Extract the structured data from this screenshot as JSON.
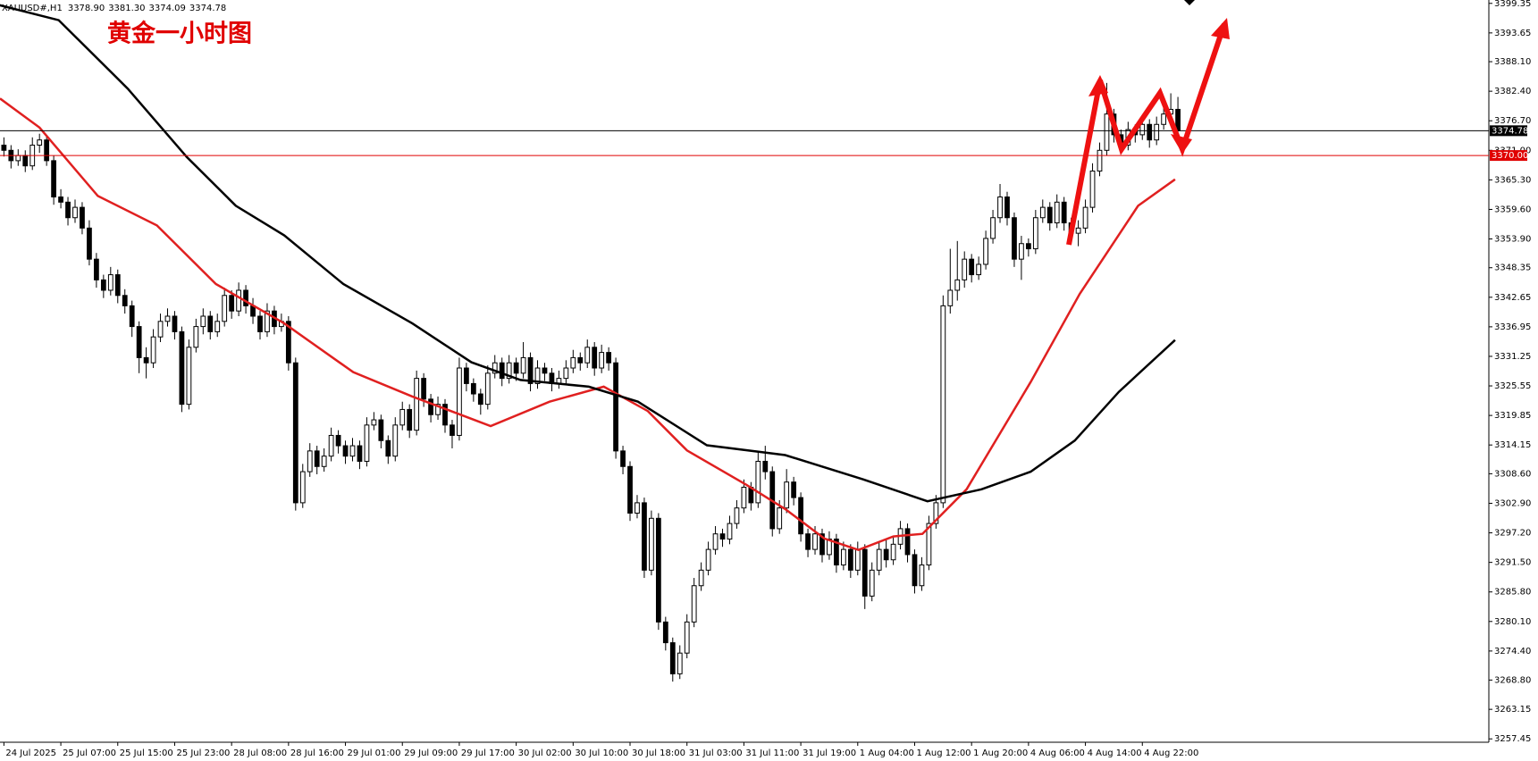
{
  "chart_data": {
    "type": "candlestick",
    "header": {
      "symbol": "XAUUSD#,H1",
      "ohlc_labels": [
        "3378.90",
        "3381.30",
        "3374.09",
        "3374.78"
      ]
    },
    "title": "黄金一小时图",
    "up_color": "#ffffff",
    "down_color": "#000000",
    "candles": [
      [
        3372,
        3373.5,
        3369.8,
        3371
      ],
      [
        3371,
        3372,
        3367.5,
        3369
      ],
      [
        3369,
        3371.2,
        3368,
        3370
      ],
      [
        3370,
        3371,
        3366.8,
        3368
      ],
      [
        3368,
        3373.5,
        3367.2,
        3372
      ],
      [
        3372,
        3374.2,
        3370.5,
        3373
      ],
      [
        3373,
        3373.8,
        3368,
        3369
      ],
      [
        3369,
        3370,
        3360.5,
        3362
      ],
      [
        3362,
        3363.5,
        3359.8,
        3361
      ],
      [
        3361,
        3362,
        3356.5,
        3358
      ],
      [
        3358,
        3361.5,
        3357,
        3360
      ],
      [
        3360,
        3361,
        3354.8,
        3356
      ],
      [
        3356,
        3357.5,
        3348.8,
        3350
      ],
      [
        3350,
        3351.2,
        3344.5,
        3346
      ],
      [
        3346,
        3347,
        3342.5,
        3344
      ],
      [
        3344,
        3348.5,
        3343,
        3347
      ],
      [
        3347,
        3348,
        3341.5,
        3343
      ],
      [
        3343,
        3344.2,
        3339.5,
        3341
      ],
      [
        3341,
        3342,
        3335,
        3337
      ],
      [
        3337,
        3338,
        3328,
        3331
      ],
      [
        3331,
        3333,
        3327,
        3330
      ],
      [
        3330,
        3336.5,
        3329,
        3335
      ],
      [
        3335,
        3339.5,
        3334,
        3338
      ],
      [
        3338,
        3340.5,
        3337,
        3339
      ],
      [
        3339,
        3340,
        3334.5,
        3336
      ],
      [
        3336,
        3337,
        3320.5,
        3322
      ],
      [
        3322,
        3334.5,
        3321,
        3333
      ],
      [
        3333,
        3338.5,
        3332,
        3337
      ],
      [
        3337,
        3340.5,
        3335.5,
        3339
      ],
      [
        3339,
        3340,
        3334.5,
        3336
      ],
      [
        3336,
        3339.5,
        3335,
        3338
      ],
      [
        3338,
        3344.5,
        3337,
        3343
      ],
      [
        3343,
        3344,
        3338.5,
        3340
      ],
      [
        3340,
        3345.5,
        3339,
        3344
      ],
      [
        3344,
        3345,
        3339.5,
        3341
      ],
      [
        3341,
        3342.5,
        3337.5,
        3339
      ],
      [
        3339,
        3340,
        3334.5,
        3336
      ],
      [
        3336,
        3341.5,
        3335,
        3340
      ],
      [
        3340,
        3341,
        3335.5,
        3337
      ],
      [
        3337,
        3339.5,
        3336,
        3338
      ],
      [
        3338,
        3339,
        3328.5,
        3330
      ],
      [
        3330,
        3331,
        3301.5,
        3303
      ],
      [
        3303,
        3310.5,
        3302,
        3309
      ],
      [
        3309,
        3314.5,
        3308,
        3313
      ],
      [
        3313,
        3314,
        3308.5,
        3310
      ],
      [
        3310,
        3313.5,
        3309,
        3312
      ],
      [
        3312,
        3317.5,
        3311,
        3316
      ],
      [
        3316,
        3317,
        3312.5,
        3314
      ],
      [
        3314,
        3315,
        3310.5,
        3312
      ],
      [
        3312,
        3315.5,
        3311,
        3314
      ],
      [
        3314,
        3315,
        3309.5,
        3311
      ],
      [
        3311,
        3319.5,
        3310,
        3318
      ],
      [
        3318,
        3320.5,
        3317,
        3319
      ],
      [
        3319,
        3320,
        3313.5,
        3315
      ],
      [
        3315,
        3316,
        3310.5,
        3312
      ],
      [
        3312,
        3319.5,
        3311,
        3318
      ],
      [
        3318,
        3322.5,
        3317,
        3321
      ],
      [
        3321,
        3322,
        3315.5,
        3317
      ],
      [
        3317,
        3328.5,
        3316,
        3327
      ],
      [
        3327,
        3328,
        3321.5,
        3323
      ],
      [
        3323,
        3324,
        3318.5,
        3320
      ],
      [
        3320,
        3323.5,
        3319,
        3322
      ],
      [
        3322,
        3323,
        3316.5,
        3318
      ],
      [
        3318,
        3319,
        3313.5,
        3316
      ],
      [
        3316,
        3331,
        3315,
        3329
      ],
      [
        3329,
        3330,
        3324.5,
        3326
      ],
      [
        3326,
        3327,
        3322.5,
        3324
      ],
      [
        3324,
        3325,
        3320,
        3322
      ],
      [
        3322,
        3329.5,
        3321,
        3328
      ],
      [
        3328,
        3331.5,
        3327,
        3330
      ],
      [
        3330,
        3331,
        3325.5,
        3327
      ],
      [
        3327,
        3331.5,
        3326,
        3330
      ],
      [
        3330,
        3331,
        3326.5,
        3328
      ],
      [
        3328,
        3334,
        3327,
        3331
      ],
      [
        3331,
        3332,
        3324.5,
        3326
      ],
      [
        3326,
        3330.5,
        3325,
        3329
      ],
      [
        3329,
        3330,
        3326.5,
        3328
      ],
      [
        3328,
        3329,
        3324.5,
        3326
      ],
      [
        3326,
        3328.5,
        3325,
        3327
      ],
      [
        3327,
        3330.5,
        3326,
        3329
      ],
      [
        3329,
        3332.5,
        3328,
        3331
      ],
      [
        3331,
        3332,
        3328.5,
        3330
      ],
      [
        3330,
        3334.5,
        3329,
        3333
      ],
      [
        3333,
        3334,
        3327.5,
        3329
      ],
      [
        3329,
        3333.5,
        3328,
        3332
      ],
      [
        3332,
        3333,
        3328.5,
        3330
      ],
      [
        3330,
        3331,
        3311.5,
        3313
      ],
      [
        3313,
        3314,
        3308.5,
        3310
      ],
      [
        3310,
        3311,
        3299.5,
        3301
      ],
      [
        3301,
        3304.5,
        3300,
        3303
      ],
      [
        3303,
        3304,
        3288.5,
        3290
      ],
      [
        3290,
        3301.5,
        3289,
        3300
      ],
      [
        3300,
        3301,
        3278.5,
        3280
      ],
      [
        3280,
        3281,
        3274.5,
        3276
      ],
      [
        3276,
        3277,
        3268.5,
        3270
      ],
      [
        3270,
        3275.5,
        3269,
        3274
      ],
      [
        3274,
        3281.5,
        3273,
        3280
      ],
      [
        3280,
        3288.5,
        3279,
        3287
      ],
      [
        3287,
        3291.5,
        3286,
        3290
      ],
      [
        3290,
        3295.5,
        3289,
        3294
      ],
      [
        3294,
        3298.5,
        3293,
        3297
      ],
      [
        3297,
        3298,
        3294.5,
        3296
      ],
      [
        3296,
        3300.5,
        3295,
        3299
      ],
      [
        3299,
        3303.5,
        3298,
        3302
      ],
      [
        3302,
        3307.5,
        3301,
        3306
      ],
      [
        3306,
        3307,
        3301.5,
        3303
      ],
      [
        3303,
        3313,
        3302,
        3311
      ],
      [
        3311,
        3314,
        3307.5,
        3309
      ],
      [
        3309,
        3310,
        3296.5,
        3298
      ],
      [
        3298,
        3303.5,
        3297,
        3302
      ],
      [
        3302,
        3309.5,
        3301,
        3307
      ],
      [
        3307,
        3308,
        3302.5,
        3304
      ],
      [
        3304,
        3305,
        3295.5,
        3297
      ],
      [
        3297,
        3298,
        3292.5,
        3294
      ],
      [
        3294,
        3298.5,
        3293,
        3297
      ],
      [
        3297,
        3298,
        3291.5,
        3293
      ],
      [
        3293,
        3297.5,
        3292,
        3296
      ],
      [
        3296,
        3297,
        3289.5,
        3291
      ],
      [
        3291,
        3295.5,
        3290,
        3294
      ],
      [
        3294,
        3295,
        3288.5,
        3290
      ],
      [
        3290,
        3295.5,
        3289,
        3294
      ],
      [
        3294,
        3295,
        3282.5,
        3285
      ],
      [
        3285,
        3291.5,
        3284,
        3290
      ],
      [
        3290,
        3295.5,
        3289,
        3294
      ],
      [
        3294,
        3296,
        3290.5,
        3292
      ],
      [
        3292,
        3296.5,
        3291,
        3295
      ],
      [
        3295,
        3299.5,
        3294,
        3298
      ],
      [
        3298,
        3299,
        3291.5,
        3293
      ],
      [
        3293,
        3294,
        3285.5,
        3287
      ],
      [
        3287,
        3292.5,
        3286,
        3291
      ],
      [
        3291,
        3300.5,
        3290,
        3299
      ],
      [
        3299,
        3304.5,
        3298,
        3303
      ],
      [
        3303,
        3343,
        3302,
        3341
      ],
      [
        3341,
        3352,
        3339.5,
        3344
      ],
      [
        3344,
        3353.5,
        3342,
        3346
      ],
      [
        3346,
        3351.5,
        3344.5,
        3350
      ],
      [
        3350,
        3351,
        3345.5,
        3347
      ],
      [
        3347,
        3350.5,
        3346,
        3349
      ],
      [
        3349,
        3355.5,
        3348,
        3354
      ],
      [
        3354,
        3359.5,
        3353,
        3358
      ],
      [
        3358,
        3364.5,
        3357,
        3362
      ],
      [
        3362,
        3363,
        3356.5,
        3358
      ],
      [
        3358,
        3359,
        3348.5,
        3350
      ],
      [
        3350,
        3354.5,
        3346,
        3353
      ],
      [
        3353,
        3354,
        3350.5,
        3352
      ],
      [
        3352,
        3359.5,
        3351,
        3358
      ],
      [
        3358,
        3361.5,
        3357,
        3360
      ],
      [
        3360,
        3361,
        3355.5,
        3357
      ],
      [
        3357,
        3362.5,
        3356,
        3361
      ],
      [
        3361,
        3362,
        3355.5,
        3357
      ],
      [
        3357,
        3358,
        3353.5,
        3355
      ],
      [
        3355,
        3357.5,
        3352.5,
        3356
      ],
      [
        3356,
        3361.5,
        3355,
        3360
      ],
      [
        3360,
        3368.5,
        3359,
        3367
      ],
      [
        3367,
        3372.5,
        3366,
        3371
      ],
      [
        3371,
        3384,
        3370,
        3378
      ],
      [
        3378,
        3379,
        3372.5,
        3374
      ],
      [
        3374,
        3375,
        3370.5,
        3372
      ],
      [
        3372,
        3376.5,
        3371,
        3375
      ],
      [
        3375,
        3376,
        3372.5,
        3374
      ],
      [
        3374,
        3377.5,
        3373,
        3376
      ],
      [
        3376,
        3377,
        3371.5,
        3373
      ],
      [
        3373,
        3377.5,
        3372,
        3376
      ],
      [
        3376,
        3379.5,
        3375,
        3378
      ],
      [
        3378,
        3382,
        3376,
        3378.9
      ],
      [
        3378.9,
        3381.3,
        3374.09,
        3374.78
      ]
    ],
    "series": [
      {
        "color": "#e02020",
        "x": [
          -0.55,
          5,
          13.2,
          21.5,
          29.8,
          39.4,
          49.1,
          57.4,
          68.4,
          76.7,
          84.3,
          90.5,
          96,
          104.3,
          109.8,
          115.3,
          120.1,
          125,
          129.1,
          135.3,
          144.3,
          151.2,
          159.4,
          164.6
        ],
        "values": [
          3381,
          3375.4,
          3362.2,
          3356.5,
          3345.2,
          3337.6,
          3328.2,
          3323.5,
          3317.8,
          3322.5,
          3325.4,
          3320.7,
          3313.1,
          3306.5,
          3301.8,
          3296.1,
          3293.9,
          3296.5,
          3297,
          3305.6,
          3326.3,
          3343.3,
          3360.3,
          3365.4
        ]
      },
      {
        "color": "#000000",
        "x": [
          -0.6,
          7.7,
          17.4,
          25.7,
          32.6,
          39.4,
          47.7,
          57.4,
          65.7,
          72.6,
          82.2,
          89.1,
          98.8,
          109.8,
          120.8,
          129.8,
          137.4,
          144.3,
          150.5,
          156.7,
          164.6
        ],
        "values": [
          3399,
          3396.1,
          3382.9,
          3369.7,
          3360.3,
          3354.6,
          3345.2,
          3337.6,
          3330.1,
          3326.7,
          3325.4,
          3322.5,
          3314.1,
          3312.2,
          3307.5,
          3303.3,
          3305.6,
          3309,
          3315,
          3324.4,
          3334.4
        ]
      }
    ],
    "hlines": [
      {
        "value": 3374.78,
        "label": "3374.78",
        "color": "#000000"
      },
      {
        "value": 3370,
        "label": "3370.00",
        "color": "#e00000"
      }
    ],
    "xlim": [
      -0.55,
      208.7
    ],
    "ylim": [
      3256.8,
      3400
    ],
    "yticks": [
      3399.35,
      3393.65,
      {
        "value": 3388.1,
        "label": "3388.10"
      },
      {
        "value": 3382.4,
        "label": "3382.40"
      },
      {
        "value": 3376.7,
        "label": "3376.70"
      },
      {
        "value": 3371,
        "label": "3371.00"
      },
      {
        "value": 3365.3,
        "label": "3365.30"
      },
      {
        "value": 3359.6,
        "label": "3359.60"
      },
      {
        "value": 3353.9,
        "label": "3353.90"
      },
      3348.35,
      3342.65,
      3336.95,
      3331.25,
      3325.55,
      3319.85,
      3314.15,
      {
        "value": 3308.6,
        "label": "3308.60"
      },
      {
        "value": 3302.9,
        "label": "3302.90"
      },
      {
        "value": 3297.2,
        "label": "3297.20"
      },
      {
        "value": 3291.5,
        "label": "3291.50"
      },
      {
        "value": 3285.8,
        "label": "3285.80"
      },
      {
        "value": 3280.1,
        "label": "3280.10"
      },
      {
        "value": 3274.4,
        "label": "3274.40"
      },
      {
        "value": 3268.8,
        "label": "3268.80"
      },
      3263.15,
      3257.45
    ],
    "xticks": [
      {
        "value": 0,
        "label": "24 Jul 2025"
      },
      {
        "value": 8,
        "label": "25 Jul 07:00"
      },
      {
        "value": 16,
        "label": "25 Jul 15:00"
      },
      {
        "value": 24,
        "label": "25 Jul 23:00"
      },
      {
        "value": 32,
        "label": "28 Jul 08:00"
      },
      {
        "value": 40,
        "label": "28 Jul 16:00"
      },
      {
        "value": 48,
        "label": "29 Jul 01:00"
      },
      {
        "value": 56,
        "label": "29 Jul 09:00"
      },
      {
        "value": 64,
        "label": "29 Jul 17:00"
      },
      {
        "value": 72,
        "label": "30 Jul 02:00"
      },
      {
        "value": 80,
        "label": "30 Jul 10:00"
      },
      {
        "value": 88,
        "label": "30 Jul 18:00"
      },
      {
        "value": 96,
        "label": "31 Jul 03:00"
      },
      {
        "value": 104,
        "label": "31 Jul 11:00"
      },
      {
        "value": 112,
        "label": "31 Jul 19:00"
      },
      {
        "value": 120,
        "label": "1 Aug 04:00"
      },
      {
        "value": 128,
        "label": "1 Aug 12:00"
      },
      {
        "value": 136,
        "label": "1 Aug 20:00"
      },
      {
        "value": 144,
        "label": "4 Aug 06:00"
      },
      {
        "value": 152,
        "label": "4 Aug 14:00"
      },
      {
        "value": 160,
        "label": "4 Aug 22:00"
      }
    ]
  }
}
